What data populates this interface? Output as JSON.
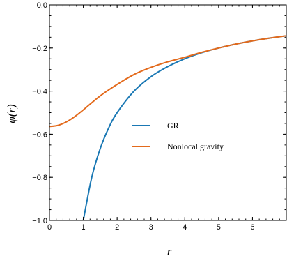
{
  "chart_data": {
    "type": "line",
    "xlabel": "r",
    "ylabel": "φ(r)",
    "xlim": [
      0,
      7
    ],
    "ylim": [
      -1.0,
      0.0
    ],
    "xticks": [
      0,
      1,
      2,
      3,
      4,
      5,
      6
    ],
    "xtick_labels": [
      "0",
      "1",
      "2",
      "3",
      "4",
      "5",
      "6"
    ],
    "yticks": [
      0.0,
      -0.2,
      -0.4,
      -0.6,
      -0.8,
      -1.0
    ],
    "ytick_labels": [
      "0.0",
      "−0.2",
      "−0.4",
      "−0.6",
      "−0.8",
      "−1.0"
    ],
    "grid": false,
    "legend_position": "center-right",
    "series": [
      {
        "name": "GR",
        "color": "#1a78b4",
        "x": [
          1.0,
          1.25,
          1.5,
          1.75,
          2.0,
          2.5,
          3.0,
          3.5,
          4.0,
          4.5,
          5.0,
          5.5,
          6.0,
          6.5,
          7.0
        ],
        "y": [
          -1.0,
          -0.8,
          -0.667,
          -0.571,
          -0.5,
          -0.4,
          -0.333,
          -0.286,
          -0.25,
          -0.222,
          -0.2,
          -0.182,
          -0.167,
          -0.154,
          -0.143
        ]
      },
      {
        "name": "Nonlocal gravity",
        "color": "#e36a1c",
        "x": [
          0.0,
          0.25,
          0.5,
          0.75,
          1.0,
          1.5,
          2.0,
          2.5,
          3.0,
          3.5,
          4.0,
          4.5,
          5.0,
          5.5,
          6.0,
          6.5,
          7.0
        ],
        "y": [
          -0.564,
          -0.559,
          -0.543,
          -0.518,
          -0.487,
          -0.422,
          -0.369,
          -0.323,
          -0.29,
          -0.264,
          -0.243,
          -0.22,
          -0.2,
          -0.182,
          -0.167,
          -0.154,
          -0.143
        ]
      }
    ]
  }
}
